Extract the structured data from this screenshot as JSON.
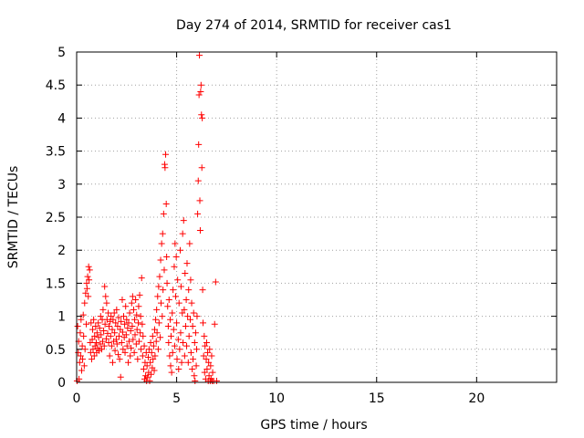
{
  "chart_data": {
    "type": "scatter",
    "title": "Day 274 of 2014, SRMTID for receiver cas1",
    "xlabel": "GPS time / hours",
    "ylabel": "SRMTID / TECUs",
    "xlim": [
      0,
      24
    ],
    "ylim": [
      0,
      5
    ],
    "xticks": [
      0,
      5,
      10,
      15,
      20
    ],
    "yticks": [
      0,
      0.5,
      1,
      1.5,
      2,
      2.5,
      3,
      3.5,
      4,
      4.5,
      5
    ],
    "xtick_labels": [
      "0",
      "5",
      "10",
      "15",
      "20"
    ],
    "ytick_labels": [
      "0",
      "0.5",
      "1",
      "1.5",
      "2",
      "2.5",
      "3",
      "3.5",
      "4",
      "4.5",
      "5"
    ],
    "grid": true,
    "marker": "+",
    "series": [
      {
        "name": "SRMTID",
        "color": "#ff0000",
        "points": [
          [
            0.02,
            0.02
          ],
          [
            0.05,
            0.85
          ],
          [
            0.08,
            0.45
          ],
          [
            0.1,
            0.62
          ],
          [
            0.12,
            0.05
          ],
          [
            0.15,
            0.3
          ],
          [
            0.18,
            0.75
          ],
          [
            0.2,
            0.4
          ],
          [
            0.22,
            0.95
          ],
          [
            0.25,
            0.18
          ],
          [
            0.28,
            0.55
          ],
          [
            0.3,
            0.35
          ],
          [
            0.33,
            1.02
          ],
          [
            0.35,
            0.7
          ],
          [
            0.38,
            0.25
          ],
          [
            0.4,
            1.2
          ],
          [
            0.42,
            0.5
          ],
          [
            0.45,
            1.35
          ],
          [
            0.48,
            0.88
          ],
          [
            0.5,
            1.5
          ],
          [
            0.52,
            1.42
          ],
          [
            0.55,
            1.6
          ],
          [
            0.58,
            1.3
          ],
          [
            0.6,
            1.75
          ],
          [
            0.62,
            1.55
          ],
          [
            0.65,
            1.7
          ],
          [
            0.68,
            0.6
          ],
          [
            0.7,
            0.45
          ],
          [
            0.72,
            0.9
          ],
          [
            0.75,
            0.35
          ],
          [
            0.78,
            0.65
          ],
          [
            0.8,
            0.8
          ],
          [
            0.82,
            0.5
          ],
          [
            0.85,
            0.95
          ],
          [
            0.88,
            0.4
          ],
          [
            0.9,
            0.7
          ],
          [
            0.92,
            0.55
          ],
          [
            0.95,
            0.85
          ],
          [
            0.98,
            0.6
          ],
          [
            1.0,
            0.45
          ],
          [
            1.02,
            0.75
          ],
          [
            1.05,
            0.52
          ],
          [
            1.08,
            0.9
          ],
          [
            1.1,
            0.68
          ],
          [
            1.12,
            0.48
          ],
          [
            1.15,
            0.82
          ],
          [
            1.18,
            0.58
          ],
          [
            1.2,
            1.0
          ],
          [
            1.22,
            0.72
          ],
          [
            1.25,
            0.5
          ],
          [
            1.28,
            0.95
          ],
          [
            1.3,
            0.62
          ],
          [
            1.32,
            1.1
          ],
          [
            1.35,
            0.78
          ],
          [
            1.38,
            0.55
          ],
          [
            1.4,
            1.45
          ],
          [
            1.42,
            0.88
          ],
          [
            1.45,
            1.3
          ],
          [
            1.48,
            0.66
          ],
          [
            1.5,
            1.2
          ],
          [
            1.52,
            0.95
          ],
          [
            1.55,
            0.74
          ],
          [
            1.58,
            1.05
          ],
          [
            1.6,
            0.6
          ],
          [
            1.62,
            0.85
          ],
          [
            1.65,
            0.4
          ],
          [
            1.68,
            0.92
          ],
          [
            1.7,
            0.7
          ],
          [
            1.72,
            1.0
          ],
          [
            1.75,
            0.55
          ],
          [
            1.78,
            0.8
          ],
          [
            1.8,
            0.3
          ],
          [
            1.82,
            0.95
          ],
          [
            1.85,
            0.62
          ],
          [
            1.88,
            1.05
          ],
          [
            1.9,
            0.75
          ],
          [
            1.92,
            0.48
          ],
          [
            1.95,
            0.9
          ],
          [
            1.98,
            0.65
          ],
          [
            2.0,
            1.1
          ],
          [
            2.02,
            0.58
          ],
          [
            2.05,
            0.85
          ],
          [
            2.08,
            0.42
          ],
          [
            2.1,
            0.98
          ],
          [
            2.12,
            0.7
          ],
          [
            2.15,
            0.35
          ],
          [
            2.18,
            0.8
          ],
          [
            2.2,
            0.08
          ],
          [
            2.22,
            0.92
          ],
          [
            2.25,
            0.6
          ],
          [
            2.28,
            1.25
          ],
          [
            2.3,
            0.76
          ],
          [
            2.32,
            0.5
          ],
          [
            2.35,
            1.0
          ],
          [
            2.38,
            0.68
          ],
          [
            2.4,
            0.88
          ],
          [
            2.42,
            0.45
          ],
          [
            2.45,
            1.15
          ],
          [
            2.48,
            0.72
          ],
          [
            2.5,
            0.95
          ],
          [
            2.52,
            0.55
          ],
          [
            2.55,
            0.82
          ],
          [
            2.58,
            0.3
          ],
          [
            2.6,
            0.9
          ],
          [
            2.62,
            0.62
          ],
          [
            2.65,
            1.05
          ],
          [
            2.68,
            0.4
          ],
          [
            2.7,
            0.78
          ],
          [
            2.72,
            0.52
          ],
          [
            2.75,
            1.2
          ],
          [
            2.78,
            0.85
          ],
          [
            2.8,
            1.3
          ],
          [
            2.82,
            0.65
          ],
          [
            2.85,
            1.1
          ],
          [
            2.88,
            0.45
          ],
          [
            2.9,
            0.95
          ],
          [
            2.92,
            0.72
          ],
          [
            2.95,
            1.25
          ],
          [
            2.98,
            0.58
          ],
          [
            3.0,
            1.02
          ],
          [
            3.02,
            0.8
          ],
          [
            3.05,
            0.35
          ],
          [
            3.08,
            0.9
          ],
          [
            3.1,
            1.15
          ],
          [
            3.12,
            0.62
          ],
          [
            3.15,
            1.32
          ],
          [
            3.18,
            0.75
          ],
          [
            3.2,
            1.0
          ],
          [
            3.22,
            0.5
          ],
          [
            3.25,
            1.58
          ],
          [
            3.28,
            0.88
          ],
          [
            3.3,
            0.4
          ],
          [
            3.32,
            0.7
          ],
          [
            3.35,
            0.2
          ],
          [
            3.38,
            0.55
          ],
          [
            3.4,
            0.05
          ],
          [
            3.42,
            0.3
          ],
          [
            3.45,
            0.1
          ],
          [
            3.48,
            0.45
          ],
          [
            3.5,
            0.02
          ],
          [
            3.52,
            0.25
          ],
          [
            3.55,
            0.08
          ],
          [
            3.58,
            0.38
          ],
          [
            3.6,
            0.15
          ],
          [
            3.62,
            0.5
          ],
          [
            3.65,
            0.02
          ],
          [
            3.68,
            0.3
          ],
          [
            3.7,
            0.6
          ],
          [
            3.72,
            0.12
          ],
          [
            3.75,
            0.45
          ],
          [
            3.78,
            0.22
          ],
          [
            3.8,
            0.7
          ],
          [
            3.82,
            0.35
          ],
          [
            3.85,
            0.55
          ],
          [
            3.88,
            0.18
          ],
          [
            3.9,
            0.8
          ],
          [
            3.92,
            0.4
          ],
          [
            3.95,
            0.95
          ],
          [
            3.98,
            0.62
          ],
          [
            4.0,
            1.1
          ],
          [
            4.02,
            0.75
          ],
          [
            4.05,
            1.3
          ],
          [
            4.08,
            0.5
          ],
          [
            4.1,
            1.45
          ],
          [
            4.12,
            0.9
          ],
          [
            4.15,
            1.6
          ],
          [
            4.18,
            0.68
          ],
          [
            4.2,
            1.85
          ],
          [
            4.22,
            1.2
          ],
          [
            4.25,
            2.1
          ],
          [
            4.28,
            1.0
          ],
          [
            4.3,
            2.25
          ],
          [
            4.32,
            1.4
          ],
          [
            4.35,
            2.55
          ],
          [
            4.38,
            1.7
          ],
          [
            4.4,
            3.3
          ],
          [
            4.42,
            3.25
          ],
          [
            4.45,
            3.45
          ],
          [
            4.48,
            2.7
          ],
          [
            4.5,
            1.9
          ],
          [
            4.52,
            1.5
          ],
          [
            4.55,
            1.15
          ],
          [
            4.58,
            0.85
          ],
          [
            4.6,
            0.6
          ],
          [
            4.62,
            1.25
          ],
          [
            4.65,
            0.4
          ],
          [
            4.68,
            0.95
          ],
          [
            4.7,
            0.25
          ],
          [
            4.72,
            0.7
          ],
          [
            4.75,
            0.15
          ],
          [
            4.78,
            1.05
          ],
          [
            4.8,
            0.45
          ],
          [
            4.82,
            1.4
          ],
          [
            4.85,
            0.8
          ],
          [
            4.88,
            1.75
          ],
          [
            4.9,
            0.55
          ],
          [
            4.92,
            2.1
          ],
          [
            4.95,
            1.3
          ],
          [
            4.98,
            1.9
          ],
          [
            5.0,
            0.9
          ],
          [
            5.02,
            0.35
          ],
          [
            5.05,
            1.55
          ],
          [
            5.08,
            0.65
          ],
          [
            5.1,
            0.2
          ],
          [
            5.12,
            1.2
          ],
          [
            5.15,
            0.5
          ],
          [
            5.18,
            2.0
          ],
          [
            5.2,
            0.75
          ],
          [
            5.22,
            1.45
          ],
          [
            5.25,
            0.3
          ],
          [
            5.28,
            1.05
          ],
          [
            5.3,
            2.25
          ],
          [
            5.32,
            0.6
          ],
          [
            5.35,
            2.45
          ],
          [
            5.38,
            1.1
          ],
          [
            5.4,
            0.4
          ],
          [
            5.42,
            1.65
          ],
          [
            5.45,
            0.85
          ],
          [
            5.48,
            1.25
          ],
          [
            5.5,
            0.55
          ],
          [
            5.52,
            1.8
          ],
          [
            5.55,
            1.0
          ],
          [
            5.58,
            0.3
          ],
          [
            5.6,
            1.4
          ],
          [
            5.62,
            0.7
          ],
          [
            5.65,
            2.1
          ],
          [
            5.68,
            0.95
          ],
          [
            5.7,
            1.55
          ],
          [
            5.72,
            0.45
          ],
          [
            5.75,
            1.2
          ],
          [
            5.78,
            0.2
          ],
          [
            5.8,
            0.85
          ],
          [
            5.82,
            0.35
          ],
          [
            5.85,
            1.05
          ],
          [
            5.88,
            0.1
          ],
          [
            5.9,
            0.6
          ],
          [
            5.92,
            0.02
          ],
          [
            5.95,
            0.75
          ],
          [
            5.98,
            0.25
          ],
          [
            6.0,
            0.5
          ],
          [
            6.02,
            1.0
          ],
          [
            6.05,
            2.55
          ],
          [
            6.08,
            3.05
          ],
          [
            6.1,
            3.6
          ],
          [
            6.12,
            4.35
          ],
          [
            6.14,
            4.95
          ],
          [
            6.16,
            2.75
          ],
          [
            6.18,
            2.3
          ],
          [
            6.2,
            4.4
          ],
          [
            6.22,
            4.5
          ],
          [
            6.24,
            4.05
          ],
          [
            6.26,
            3.25
          ],
          [
            6.28,
            4.0
          ],
          [
            6.3,
            1.4
          ],
          [
            6.32,
            0.9
          ],
          [
            6.35,
            0.4
          ],
          [
            6.38,
            0.7
          ],
          [
            6.4,
            0.15
          ],
          [
            6.42,
            0.55
          ],
          [
            6.45,
            0.05
          ],
          [
            6.48,
            0.35
          ],
          [
            6.5,
            0.6
          ],
          [
            6.52,
            0.2
          ],
          [
            6.55,
            0.45
          ],
          [
            6.58,
            0.02
          ],
          [
            6.6,
            0.3
          ],
          [
            6.62,
            0.1
          ],
          [
            6.65,
            0.5
          ],
          [
            6.68,
            0.02
          ],
          [
            6.7,
            0.25
          ],
          [
            6.72,
            0.05
          ],
          [
            6.75,
            0.4
          ],
          [
            6.78,
            0.02
          ],
          [
            6.8,
            0.15
          ],
          [
            6.85,
            0.02
          ],
          [
            6.9,
            0.88
          ],
          [
            6.95,
            1.52
          ],
          [
            7.0,
            0.02
          ]
        ]
      }
    ]
  }
}
